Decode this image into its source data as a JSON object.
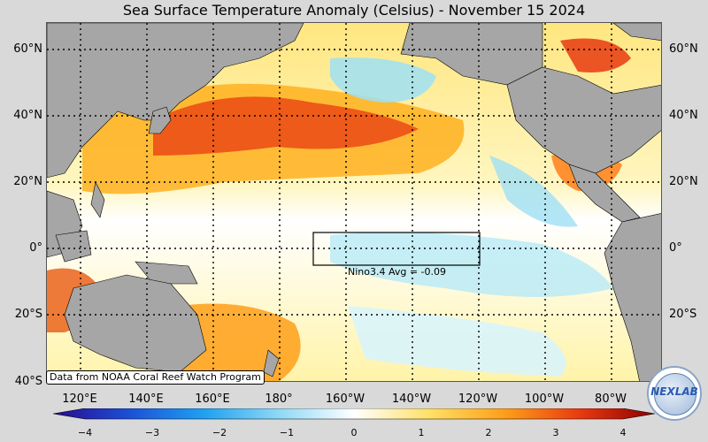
{
  "title": "Sea Surface Temperature Anomaly (Celsius) - November 15 2024",
  "lat_labels": [
    "60°N",
    "40°N",
    "20°N",
    "0°",
    "20°S",
    "40°S"
  ],
  "lon_labels": [
    "120°E",
    "140°E",
    "160°E",
    "180°",
    "160°W",
    "140°W",
    "120°W",
    "100°W",
    "80°W"
  ],
  "credit": "Data from NOAA Coral Reef Watch Program",
  "nino_label": "Nino3.4 Avg = -0.09",
  "colorbar": {
    "ticks": [
      "−4",
      "−3",
      "−2",
      "−1",
      "0",
      "1",
      "2",
      "3",
      "4"
    ],
    "colors": [
      "#2a0a8a",
      "#1c4fd6",
      "#1fa0f0",
      "#8fd8f5",
      "#ffffff",
      "#ffe066",
      "#ff9f1a",
      "#e83a10",
      "#8a0000"
    ]
  },
  "logo_text": "NEXLAB",
  "colors": {
    "land": "#a6a6a6",
    "warm": "#ffcc33",
    "hot": "#e83a10",
    "cool": "#9fe0f5"
  }
}
